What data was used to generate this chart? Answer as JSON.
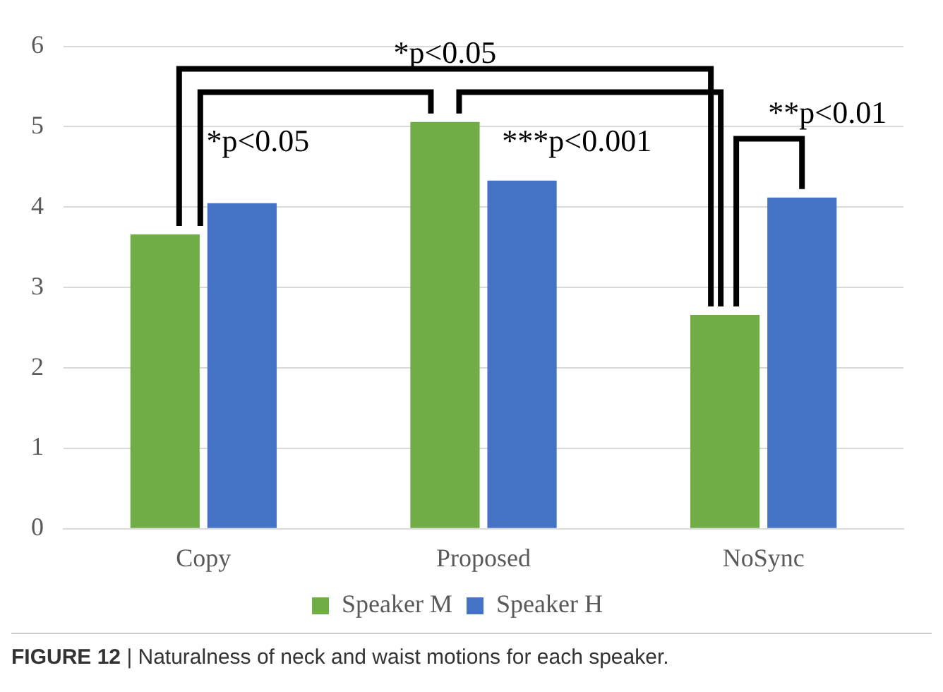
{
  "chart_data": {
    "type": "bar",
    "categories": [
      "Copy",
      "Proposed",
      "NoSync"
    ],
    "series": [
      {
        "name": "Speaker M",
        "color": "#70ad47",
        "values": [
          3.66,
          5.06,
          2.66
        ]
      },
      {
        "name": "Speaker H",
        "color": "#4472c4",
        "values": [
          4.05,
          4.33,
          4.12
        ]
      }
    ],
    "ylim": [
      0,
      6
    ],
    "yticks": [
      0,
      1,
      2,
      3,
      4,
      5,
      6
    ],
    "grid": "y",
    "legend": "bottom",
    "annotations": [
      "*p<0.05",
      "*p<0.05",
      "***p<0.001",
      "**p<0.01",
      "FIGURE 12 | Naturalness of neck and waist motions for each speaker."
    ]
  }
}
